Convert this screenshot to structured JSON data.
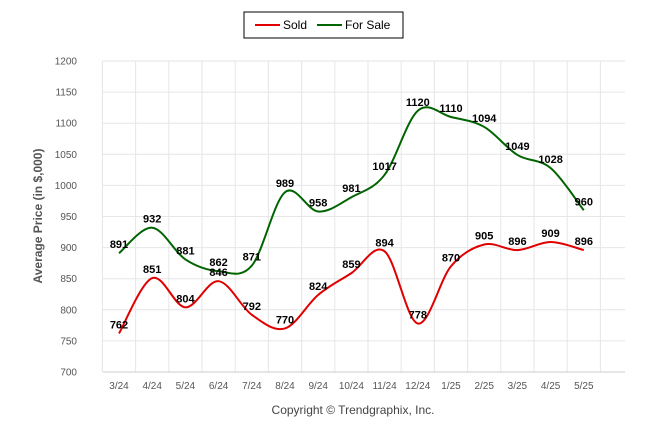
{
  "chart_data": {
    "type": "line",
    "categories": [
      "3/24",
      "4/24",
      "5/24",
      "6/24",
      "7/24",
      "8/24",
      "9/24",
      "10/24",
      "11/24",
      "12/24",
      "1/25",
      "2/25",
      "3/25",
      "4/25",
      "5/25"
    ],
    "series": [
      {
        "name": "Sold",
        "color": "#e00000",
        "values": [
          762,
          851,
          804,
          846,
          792,
          770,
          824,
          859,
          894,
          778,
          870,
          905,
          896,
          909,
          896
        ]
      },
      {
        "name": "For Sale",
        "color": "#006400",
        "values": [
          891,
          932,
          881,
          862,
          871,
          989,
          958,
          981,
          1017,
          1120,
          1110,
          1094,
          1049,
          1028,
          960
        ]
      }
    ],
    "ylabel": "Average Price (in $,000)",
    "ylim": [
      700,
      1200
    ],
    "yticks": [
      700,
      750,
      800,
      850,
      900,
      950,
      1000,
      1050,
      1100,
      1150,
      1200
    ],
    "legend_position": "top-center",
    "grid": true,
    "footer": "Copyright © Trendgraphix, Inc."
  }
}
